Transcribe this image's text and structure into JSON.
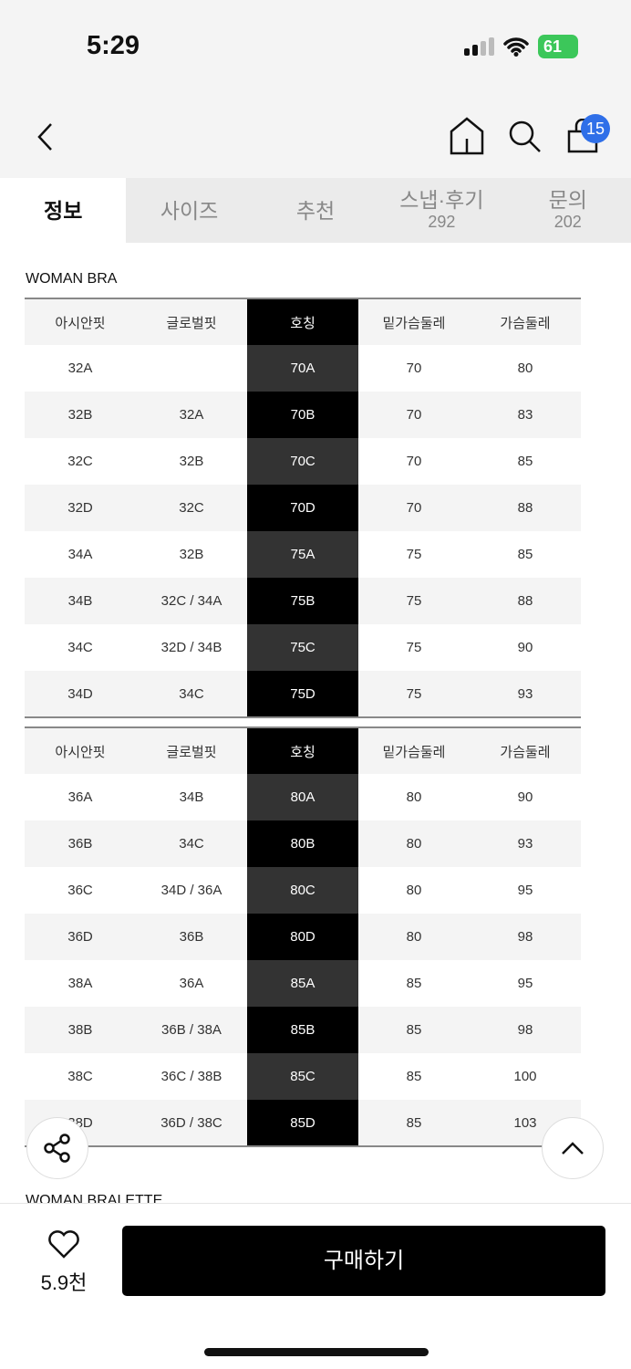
{
  "status": {
    "time": "5:29",
    "battery": "61"
  },
  "header": {
    "cart_count": "15"
  },
  "tabs": [
    {
      "label": "정보",
      "active": true
    },
    {
      "label": "사이즈"
    },
    {
      "label": "추천"
    },
    {
      "label": "스냅·후기",
      "count": "292"
    },
    {
      "label": "문의",
      "count": "202"
    }
  ],
  "section1": {
    "title": "WOMAN BRA"
  },
  "section2": {
    "title": "WOMAN BRALETTE"
  },
  "columns": [
    "아시안핏",
    "글로벌핏",
    "호칭",
    "밑가슴둘레",
    "가슴둘레"
  ],
  "table1": [
    [
      "32A",
      "",
      "70A",
      "70",
      "80"
    ],
    [
      "32B",
      "32A",
      "70B",
      "70",
      "83"
    ],
    [
      "32C",
      "32B",
      "70C",
      "70",
      "85"
    ],
    [
      "32D",
      "32C",
      "70D",
      "70",
      "88"
    ],
    [
      "34A",
      "32B",
      "75A",
      "75",
      "85"
    ],
    [
      "34B",
      "32C / 34A",
      "75B",
      "75",
      "88"
    ],
    [
      "34C",
      "32D / 34B",
      "75C",
      "75",
      "90"
    ],
    [
      "34D",
      "34C",
      "75D",
      "75",
      "93"
    ]
  ],
  "table2": [
    [
      "36A",
      "34B",
      "80A",
      "80",
      "90"
    ],
    [
      "36B",
      "34C",
      "80B",
      "80",
      "93"
    ],
    [
      "36C",
      "34D / 36A",
      "80C",
      "80",
      "95"
    ],
    [
      "36D",
      "36B",
      "80D",
      "80",
      "98"
    ],
    [
      "38A",
      "36A",
      "85A",
      "85",
      "95"
    ],
    [
      "38B",
      "36B / 38A",
      "85B",
      "85",
      "98"
    ],
    [
      "38C",
      "36C / 38B",
      "85C",
      "85",
      "100"
    ],
    [
      "38D",
      "36D / 38C",
      "85D",
      "85",
      "103"
    ]
  ],
  "bottom": {
    "likes": "5.9천",
    "buy_label": "구매하기"
  },
  "colors": {
    "badge": "#2f6fe8",
    "battery": "#3cc75a",
    "highlight_column": "#000000"
  }
}
